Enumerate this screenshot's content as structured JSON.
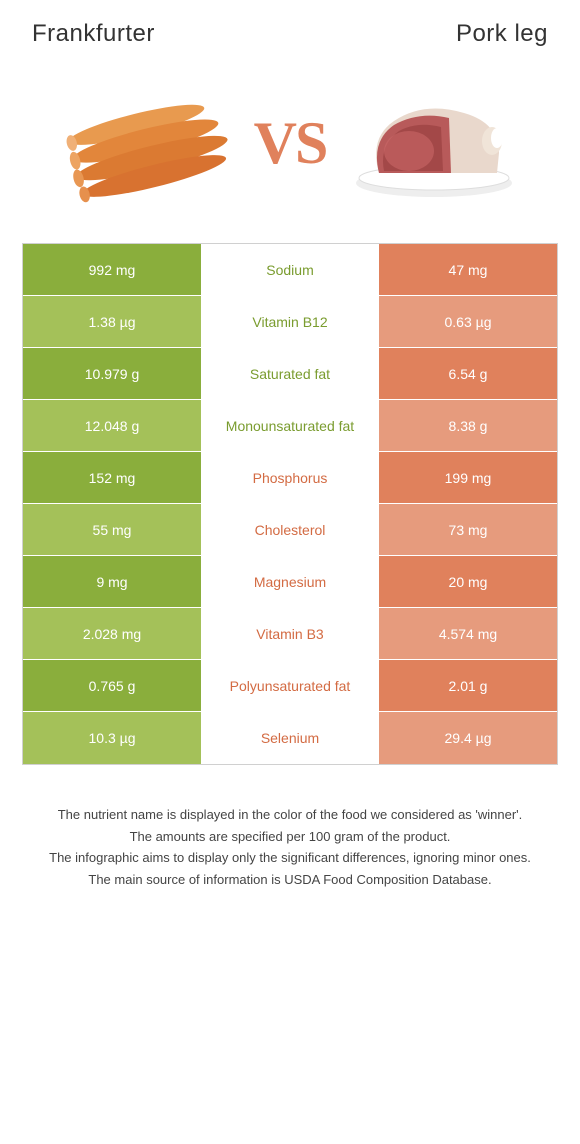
{
  "header": {
    "left": "Frankfurter",
    "right": "Pork leg"
  },
  "vs": "VS",
  "colors": {
    "green_dark": "#8aae3c",
    "green_light": "#a4c159",
    "orange_dark": "#e0815c",
    "orange_light": "#e69b7d",
    "label_green": "#7a9c2f",
    "label_orange": "#d36b43"
  },
  "rows": [
    {
      "left": "992 mg",
      "label": "Sodium",
      "right": "47 mg",
      "winner": "left"
    },
    {
      "left": "1.38 µg",
      "label": "Vitamin B12",
      "right": "0.63 µg",
      "winner": "left"
    },
    {
      "left": "10.979 g",
      "label": "Saturated fat",
      "right": "6.54 g",
      "winner": "left"
    },
    {
      "left": "12.048 g",
      "label": "Monounsaturated fat",
      "right": "8.38 g",
      "winner": "left"
    },
    {
      "left": "152 mg",
      "label": "Phosphorus",
      "right": "199 mg",
      "winner": "right"
    },
    {
      "left": "55 mg",
      "label": "Cholesterol",
      "right": "73 mg",
      "winner": "right"
    },
    {
      "left": "9 mg",
      "label": "Magnesium",
      "right": "20 mg",
      "winner": "right"
    },
    {
      "left": "2.028 mg",
      "label": "Vitamin B3",
      "right": "4.574 mg",
      "winner": "right"
    },
    {
      "left": "0.765 g",
      "label": "Polyunsaturated fat",
      "right": "2.01 g",
      "winner": "right"
    },
    {
      "left": "10.3 µg",
      "label": "Selenium",
      "right": "29.4 µg",
      "winner": "right"
    }
  ],
  "footer": {
    "line1": "The nutrient name is displayed in the color of the food we considered as 'winner'.",
    "line2": "The amounts are specified per 100 gram of the product.",
    "line3": "The infographic aims to display only the significant differences, ignoring minor ones.",
    "line4": "The main source of information is USDA Food Composition Database."
  }
}
